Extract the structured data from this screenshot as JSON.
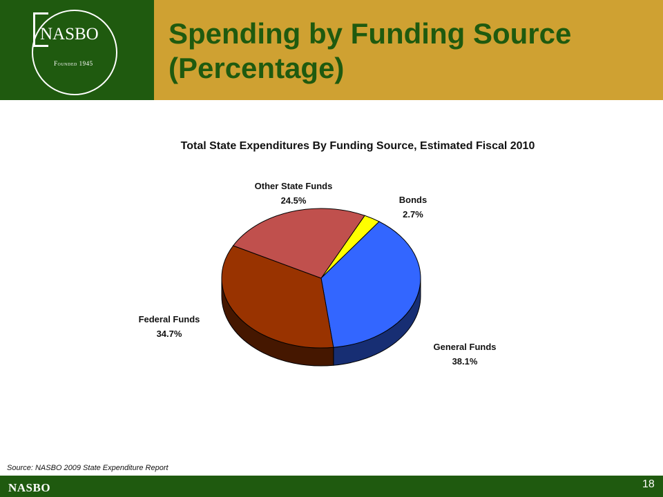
{
  "header": {
    "title_line1": "Spending by Funding Source",
    "title_line2": "(Percentage)",
    "title_color": "#1f5a0f",
    "title_bar_color": "#cfa132",
    "logo_bg_color": "#1f5a0f"
  },
  "logo": {
    "text": "NASBO",
    "founded": "Founded 1945"
  },
  "chart_data": {
    "type": "pie",
    "title": "Total State Expenditures By Funding Source, Estimated Fiscal 2010",
    "style": "3d",
    "slices": [
      {
        "name": "Bonds",
        "value": 2.7,
        "label": "2.7%",
        "color": "#ffff00"
      },
      {
        "name": "General Funds",
        "value": 38.1,
        "label": "38.1%",
        "color": "#3366ff"
      },
      {
        "name": "Federal Funds",
        "value": 34.7,
        "label": "34.7%",
        "color": "#993300"
      },
      {
        "name": "Other State Funds",
        "value": 24.5,
        "label": "24.5%",
        "color": "#c0504d"
      }
    ]
  },
  "source": "Source: NASBO 2009 State Expenditure Report",
  "footer": {
    "brand": "NASBO",
    "page_number": "18"
  }
}
